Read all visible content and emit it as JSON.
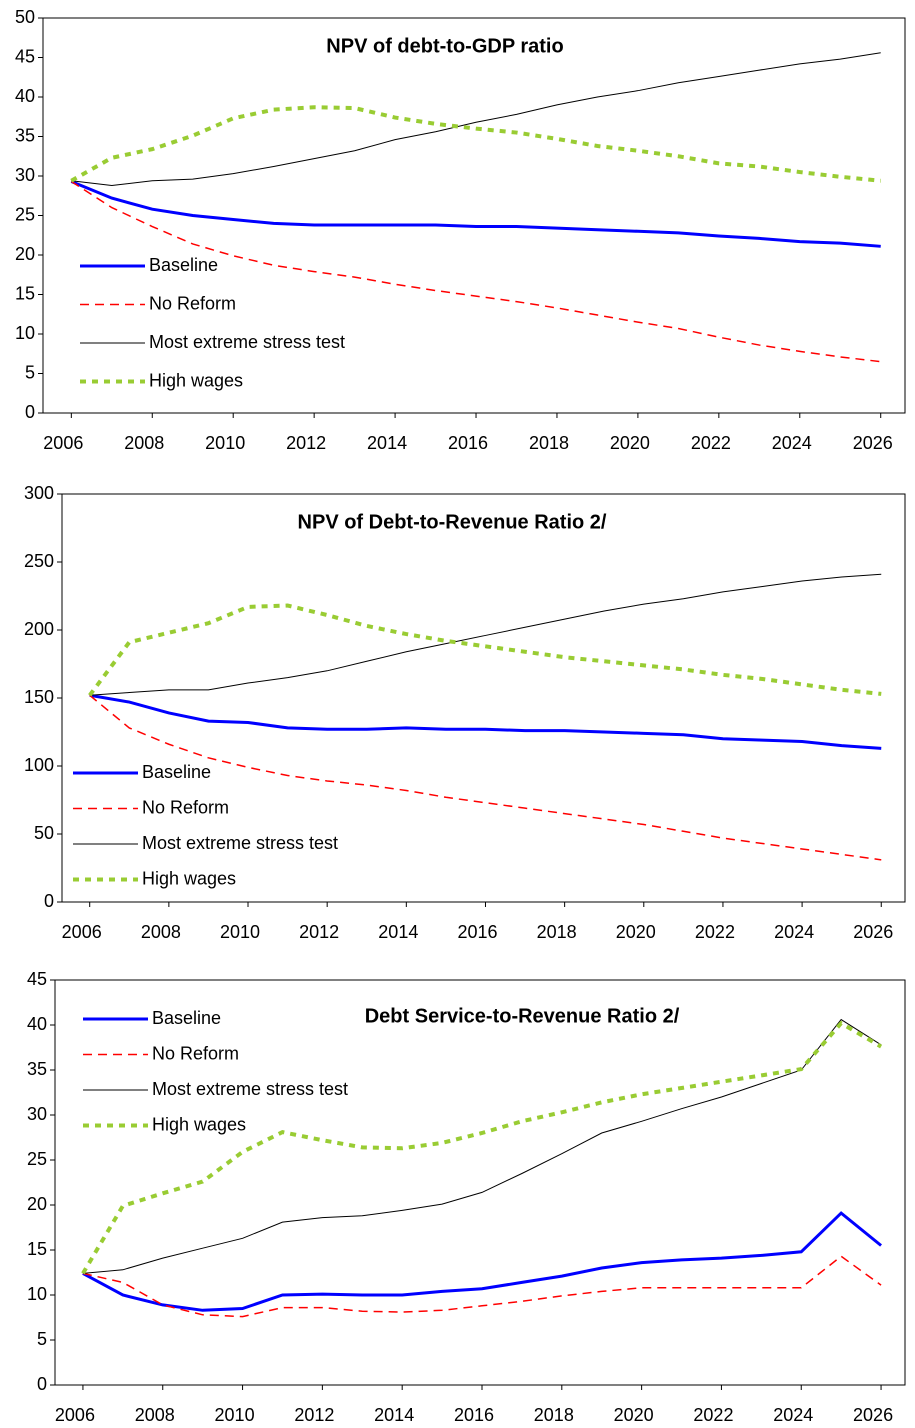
{
  "chart_data": [
    {
      "type": "line",
      "title": "NPV of debt-to-GDP ratio",
      "x": [
        2006,
        2007,
        2008,
        2009,
        2010,
        2011,
        2012,
        2013,
        2014,
        2015,
        2016,
        2017,
        2018,
        2019,
        2020,
        2021,
        2022,
        2023,
        2024,
        2025,
        2026
      ],
      "xlim": [
        2005.3,
        2026.6
      ],
      "xticks": [
        2006,
        2008,
        2010,
        2012,
        2014,
        2016,
        2018,
        2020,
        2022,
        2024,
        2026
      ],
      "ylim": [
        0,
        50
      ],
      "yticks": [
        0,
        5,
        10,
        15,
        20,
        25,
        30,
        35,
        40,
        45,
        50
      ],
      "legend": "lower left",
      "series": [
        {
          "name": "Baseline",
          "color": "#0000ff",
          "values": [
            29.3,
            27.2,
            25.8,
            25,
            24.5,
            24,
            23.8,
            23.8,
            23.8,
            23.8,
            23.6,
            23.6,
            23.4,
            23.2,
            23,
            22.8,
            22.4,
            22.1,
            21.7,
            21.5,
            21.1
          ]
        },
        {
          "name": "No Reform",
          "color": "#ff0000",
          "values": [
            29.3,
            26,
            23.6,
            21.4,
            19.9,
            18.7,
            17.9,
            17.2,
            16.3,
            15.5,
            14.8,
            14.1,
            13.3,
            12.4,
            11.5,
            10.7,
            9.6,
            8.6,
            7.8,
            7.1,
            6.5
          ]
        },
        {
          "name": "Most extreme stress test",
          "color": "#000000",
          "values": [
            29.4,
            28.8,
            29.4,
            29.6,
            30.3,
            31.2,
            32.2,
            33.2,
            34.6,
            35.6,
            36.8,
            37.8,
            39,
            40,
            40.8,
            41.8,
            42.6,
            43.4,
            44.2,
            44.8,
            45.6
          ]
        },
        {
          "name": "High wages",
          "color": "#99cc33",
          "values": [
            29.4,
            32.3,
            33.4,
            35.1,
            37.3,
            38.4,
            38.7,
            38.6,
            37.4,
            36.6,
            36,
            35.5,
            34.7,
            33.8,
            33.2,
            32.5,
            31.6,
            31.2,
            30.5,
            29.9,
            29.4
          ]
        }
      ]
    },
    {
      "type": "line",
      "title": "NPV of Debt-to-Revenue Ratio 2/",
      "x": [
        2006,
        2007,
        2008,
        2009,
        2010,
        2011,
        2012,
        2013,
        2014,
        2015,
        2016,
        2017,
        2018,
        2019,
        2020,
        2021,
        2022,
        2023,
        2024,
        2025,
        2026
      ],
      "xlim": [
        2005.3,
        2026.6
      ],
      "xticks": [
        2006,
        2008,
        2010,
        2012,
        2014,
        2016,
        2018,
        2020,
        2022,
        2024,
        2026
      ],
      "ylim": [
        0,
        300
      ],
      "yticks": [
        0,
        50,
        100,
        150,
        200,
        250,
        300
      ],
      "legend": "lower left",
      "series": [
        {
          "name": "Baseline",
          "color": "#0000ff",
          "values": [
            152,
            147,
            139,
            133,
            132,
            128,
            127,
            127,
            128,
            127,
            127,
            126,
            126,
            125,
            124,
            123,
            120,
            119,
            118,
            115,
            113
          ]
        },
        {
          "name": "No Reform",
          "color": "#ff0000",
          "values": [
            152,
            128,
            116,
            106,
            99,
            93,
            89,
            86,
            82,
            77,
            73,
            69,
            65,
            61,
            57,
            52,
            47,
            43,
            39,
            35,
            31
          ]
        },
        {
          "name": "Most extreme stress test",
          "color": "#000000",
          "values": [
            152,
            154,
            156,
            156,
            161,
            165,
            170,
            177,
            184,
            190,
            196,
            202,
            208,
            214,
            219,
            223,
            228,
            232,
            236,
            239,
            241
          ]
        },
        {
          "name": "High wages",
          "color": "#99cc33",
          "values": [
            152,
            191,
            198,
            205,
            217,
            218,
            211,
            203,
            197,
            192,
            188,
            184,
            180,
            177,
            174,
            171,
            167,
            164,
            160,
            156,
            153
          ]
        }
      ]
    },
    {
      "type": "line",
      "title": "Debt Service-to-Revenue Ratio 2/",
      "x": [
        2006,
        2007,
        2008,
        2009,
        2010,
        2011,
        2012,
        2013,
        2014,
        2015,
        2016,
        2017,
        2018,
        2019,
        2020,
        2021,
        2022,
        2023,
        2024,
        2025,
        2026
      ],
      "xlim": [
        2005.3,
        2026.6
      ],
      "xticks": [
        2006,
        2008,
        2010,
        2012,
        2014,
        2016,
        2018,
        2020,
        2022,
        2024,
        2026
      ],
      "ylim": [
        0,
        45
      ],
      "yticks": [
        0,
        5,
        10,
        15,
        20,
        25,
        30,
        35,
        40,
        45
      ],
      "legend": "upper left",
      "series": [
        {
          "name": "Baseline",
          "color": "#0000ff",
          "values": [
            12.4,
            10,
            8.9,
            8.3,
            8.5,
            10,
            10.1,
            10,
            10,
            10.4,
            10.7,
            11.4,
            12.1,
            13,
            13.6,
            13.9,
            14.1,
            14.4,
            14.8,
            19.1,
            15.5
          ]
        },
        {
          "name": "No Reform",
          "color": "#ff0000",
          "values": [
            12.4,
            11.4,
            8.9,
            7.8,
            7.6,
            8.6,
            8.6,
            8.2,
            8.1,
            8.3,
            8.8,
            9.3,
            9.9,
            10.4,
            10.8,
            10.8,
            10.8,
            10.8,
            10.8,
            14.3,
            11.1
          ]
        },
        {
          "name": "Most extreme stress test",
          "color": "#000000",
          "values": [
            12.4,
            12.8,
            14.1,
            15.2,
            16.3,
            18.1,
            18.6,
            18.8,
            19.4,
            20.1,
            21.4,
            23.5,
            25.7,
            28,
            29.3,
            30.7,
            32,
            33.5,
            35,
            40.6,
            37.8
          ]
        },
        {
          "name": "High wages",
          "color": "#99cc33",
          "values": [
            12.4,
            19.9,
            21.3,
            22.6,
            25.9,
            28.1,
            27.2,
            26.4,
            26.3,
            26.9,
            28,
            29.3,
            30.3,
            31.4,
            32.3,
            33,
            33.7,
            34.4,
            35.1,
            40.2,
            37.6
          ]
        }
      ]
    }
  ]
}
